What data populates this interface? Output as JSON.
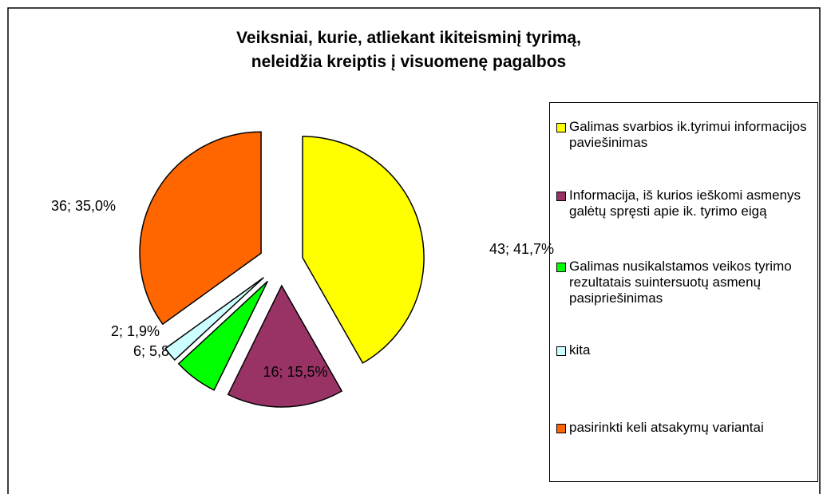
{
  "chart_data": {
    "type": "pie",
    "title": "Veiksniai, kurie, atliekant ikiteisminį tyrimą, neleidžia kreiptis į visuomenę pagalbos",
    "categories": [
      "Galimas svarbios ik.tyrimui informacijos paviešinimas",
      "Informacija, iš kurios ieškomi asmenys galėtų spręsti apie ik. tyrimo eigą",
      "Galimas nusikalstamos veikos tyrimo rezultatais suintersuotų asmenų pasipriešinimas",
      "kita",
      "pasirinkti keli atsakymų variantai"
    ],
    "values": [
      43,
      16,
      6,
      2,
      36
    ],
    "value_labels": [
      "43; 41,7%",
      "16; 15,5%",
      "6; 5,8%",
      "2; 1,9%",
      "36; 35,0%"
    ],
    "colors": [
      "#ffff00",
      "#993366",
      "#00ff00",
      "#ccffff",
      "#ff6600"
    ],
    "exploded": true,
    "legend": "right"
  }
}
